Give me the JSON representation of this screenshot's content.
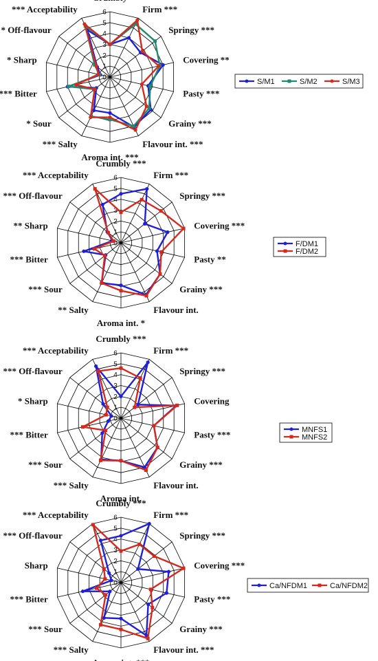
{
  "chart_data": [
    {
      "type": "radar",
      "rmax": 6,
      "ticks": [
        0,
        1,
        2,
        3,
        4,
        5,
        6
      ],
      "axes": [
        {
          "label": "Crumbly",
          "sig": "",
          "anchor": "middle"
        },
        {
          "label": "Firm",
          "sig": "***",
          "anchor": "start"
        },
        {
          "label": "Springy",
          "sig": "***",
          "anchor": "start"
        },
        {
          "label": "Covering",
          "sig": "**",
          "anchor": "start"
        },
        {
          "label": "Pasty",
          "sig": "***",
          "anchor": "start"
        },
        {
          "label": "Grainy",
          "sig": "***",
          "anchor": "start"
        },
        {
          "label": "Flavour int.",
          "sig": "***",
          "anchor": "start"
        },
        {
          "label": "Aroma int.",
          "sig": "***",
          "anchor": "middle"
        },
        {
          "label": "Salty",
          "sig": "***",
          "anchor": "end",
          "prefix": true
        },
        {
          "label": "Sour",
          "sig": "*",
          "anchor": "end",
          "prefix": true
        },
        {
          "label": "Bitter",
          "sig": "***",
          "anchor": "end",
          "prefix": true
        },
        {
          "label": "Sharp",
          "sig": "*",
          "anchor": "end",
          "prefix": true
        },
        {
          "label": "Off-flavour",
          "sig": "*",
          "anchor": "end",
          "prefix": true
        },
        {
          "label": "Acceptability",
          "sig": "***",
          "anchor": "end",
          "prefix": true
        }
      ],
      "series": [
        {
          "name": "S/M1",
          "color": "#1f1fd6",
          "values": [
            3.0,
            4.0,
            3.6,
            5.0,
            3.6,
            4.8,
            5.1,
            3.3,
            3.4,
            1.6,
            4.0,
            0.9,
            1.5,
            4.8
          ]
        },
        {
          "name": "S/M2",
          "color": "#1f8a6e",
          "values": [
            3.0,
            5.4,
            5.3,
            4.7,
            3.8,
            4.6,
            5.0,
            3.9,
            4.0,
            1.8,
            3.9,
            1.0,
            1.8,
            5.2
          ]
        },
        {
          "name": "S/M3",
          "color": "#d42a1e",
          "values": [
            3.0,
            5.8,
            3.8,
            4.6,
            3.0,
            4.3,
            5.4,
            3.7,
            4.1,
            1.8,
            3.2,
            1.1,
            1.6,
            5.4
          ]
        }
      ]
    },
    {
      "type": "radar",
      "rmax": 6,
      "ticks": [
        0,
        1,
        2,
        3,
        4,
        5,
        6
      ],
      "axes": [
        {
          "label": "Crumbly",
          "sig": "***",
          "anchor": "middle"
        },
        {
          "label": "Firm",
          "sig": "***",
          "anchor": "start"
        },
        {
          "label": "Springy",
          "sig": "***",
          "anchor": "start"
        },
        {
          "label": "Covering",
          "sig": "***",
          "anchor": "start"
        },
        {
          "label": "Pasty",
          "sig": "**",
          "anchor": "start"
        },
        {
          "label": "Grainy",
          "sig": "***",
          "anchor": "start"
        },
        {
          "label": "Flavour int.",
          "sig": "",
          "anchor": "start"
        },
        {
          "label": "Aroma int.",
          "sig": "*",
          "anchor": "middle"
        },
        {
          "label": "Salty",
          "sig": "**",
          "anchor": "end",
          "prefix": true
        },
        {
          "label": "Sour",
          "sig": "***",
          "anchor": "end",
          "prefix": true
        },
        {
          "label": "Bitter",
          "sig": "***",
          "anchor": "end",
          "prefix": true
        },
        {
          "label": "Sharp",
          "sig": "**",
          "anchor": "end",
          "prefix": true
        },
        {
          "label": "Off-flavour",
          "sig": "***",
          "anchor": "end",
          "prefix": true
        },
        {
          "label": "Acceptability",
          "sig": "***",
          "anchor": "end",
          "prefix": true
        }
      ],
      "series": [
        {
          "name": "F/DM1",
          "color": "#1f1fd6",
          "values": [
            4.5,
            5.5,
            2.8,
            4.4,
            3.4,
            4.6,
            5.3,
            3.9,
            4.1,
            1.8,
            3.5,
            0.8,
            1.6,
            3.9
          ]
        },
        {
          "name": "F/DM2",
          "color": "#d42a1e",
          "values": [
            2.8,
            4.4,
            4.7,
            5.9,
            3.8,
            4.6,
            5.4,
            4.4,
            4.1,
            1.9,
            2.5,
            0.7,
            1.5,
            5.5
          ]
        }
      ]
    },
    {
      "type": "radar",
      "rmax": 6,
      "ticks": [
        0,
        1,
        2,
        3,
        4,
        5,
        6
      ],
      "axes": [
        {
          "label": "Crumbly",
          "sig": "***",
          "anchor": "middle"
        },
        {
          "label": "Firm",
          "sig": "***",
          "anchor": "start"
        },
        {
          "label": "Springy",
          "sig": "***",
          "anchor": "start"
        },
        {
          "label": "Covering",
          "sig": "",
          "anchor": "start"
        },
        {
          "label": "Pasty",
          "sig": "***",
          "anchor": "start"
        },
        {
          "label": "Grainy",
          "sig": "***",
          "anchor": "start"
        },
        {
          "label": "Flavour int.",
          "sig": "",
          "anchor": "start"
        },
        {
          "label": "Aroma int.",
          "sig": "",
          "anchor": "middle"
        },
        {
          "label": "Salty",
          "sig": "***",
          "anchor": "end",
          "prefix": true
        },
        {
          "label": "Sour",
          "sig": "***",
          "anchor": "end",
          "prefix": true
        },
        {
          "label": "Bitter",
          "sig": "***",
          "anchor": "end",
          "prefix": true
        },
        {
          "label": "Sharp",
          "sig": "*",
          "anchor": "end",
          "prefix": true
        },
        {
          "label": "Off-flavour",
          "sig": "***",
          "anchor": "end",
          "prefix": true
        },
        {
          "label": "Acceptability",
          "sig": "***",
          "anchor": "end",
          "prefix": true
        }
      ],
      "series": [
        {
          "name": "MNFS1",
          "color": "#1f1fd6",
          "values": [
            2.0,
            5.7,
            2.0,
            5.2,
            3.1,
            4.3,
            5.0,
            3.9,
            4.2,
            2.2,
            1.2,
            0.9,
            2.1,
            5.3
          ]
        },
        {
          "name": "MNFS2",
          "color": "#d42a1e",
          "values": [
            4.6,
            4.1,
            1.6,
            5.3,
            3.1,
            4.3,
            5.3,
            3.9,
            4.3,
            1.8,
            3.6,
            1.4,
            1.6,
            4.8
          ]
        }
      ]
    },
    {
      "type": "radar",
      "rmax": 6,
      "ticks": [
        0,
        1,
        2,
        3,
        4,
        5,
        6
      ],
      "axes": [
        {
          "label": "Crumbly",
          "sig": "***",
          "anchor": "middle"
        },
        {
          "label": "Firm",
          "sig": "***",
          "anchor": "start"
        },
        {
          "label": "Springy",
          "sig": "***",
          "anchor": "start"
        },
        {
          "label": "Covering",
          "sig": "***",
          "anchor": "start"
        },
        {
          "label": "Pasty",
          "sig": "***",
          "anchor": "start"
        },
        {
          "label": "Grainy",
          "sig": "***",
          "anchor": "start"
        },
        {
          "label": "Flavour int.",
          "sig": "***",
          "anchor": "start"
        },
        {
          "label": "Aroma int.",
          "sig": "***",
          "anchor": "middle"
        },
        {
          "label": "Salty",
          "sig": "***",
          "anchor": "end",
          "prefix": true
        },
        {
          "label": "Sour",
          "sig": "***",
          "anchor": "end",
          "prefix": true
        },
        {
          "label": "Bitter",
          "sig": "***",
          "anchor": "end",
          "prefix": true
        },
        {
          "label": "Sharp",
          "sig": "",
          "anchor": "end",
          "prefix": true
        },
        {
          "label": "Off-flavour",
          "sig": "***",
          "anchor": "end",
          "prefix": true
        },
        {
          "label": "Acceptability",
          "sig": "***",
          "anchor": "end",
          "prefix": true
        }
      ],
      "series": [
        {
          "name": "Ca/NFDM1",
          "color": "#1f1fd6",
          "values": [
            4.3,
            6.0,
            2.0,
            4.5,
            4.3,
            3.2,
            5.4,
            3.3,
            3.6,
            1.3,
            3.6,
            0.9,
            1.4,
            4.3
          ]
        },
        {
          "name": "Ca/NFDM2",
          "color": "#d42a1e",
          "values": [
            2.9,
            3.9,
            3.9,
            5.9,
            2.8,
            3.7,
            5.7,
            4.3,
            4.3,
            1.8,
            2.3,
            1.5,
            2.0,
            5.9
          ]
        }
      ]
    }
  ]
}
